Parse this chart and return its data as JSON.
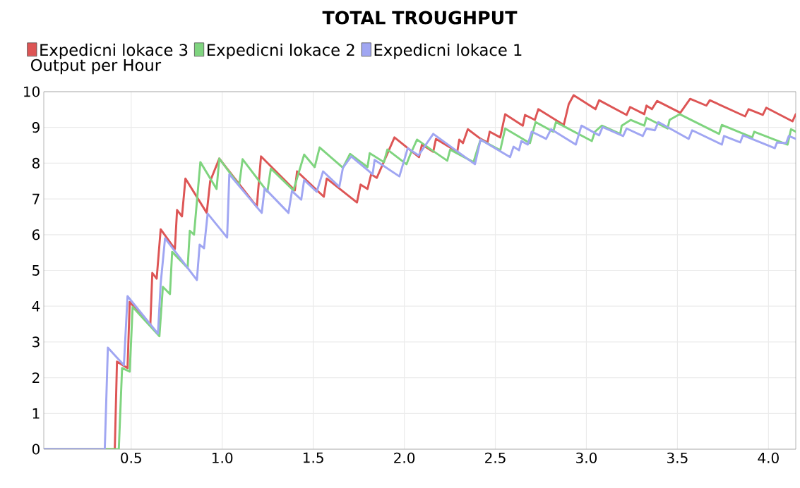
{
  "chart_data": {
    "type": "line",
    "title": "TOTAL TROUGHPUT",
    "ylabel": "Output per Hour",
    "xlim": [
      0.02,
      4.15
    ],
    "ylim": [
      0,
      10
    ],
    "xticks": [
      0.5,
      {
        "value": 1,
        "label": "1.0"
      },
      1.5,
      {
        "value": 2,
        "label": "2.0"
      },
      2.5,
      {
        "value": 3,
        "label": "3.0"
      },
      3.5,
      {
        "value": 4,
        "label": "4.0"
      }
    ],
    "yticks": [
      0,
      1,
      2,
      3,
      4,
      5,
      6,
      7,
      8,
      9,
      10
    ],
    "grid": true,
    "legend": "top left",
    "marker": "none",
    "line_style": "solid",
    "series": [
      {
        "name": "Expedicni lokace 3",
        "color": "#dd5555",
        "x": [
          0.02,
          0.41,
          0.422,
          0.48,
          0.492,
          0.605,
          0.616,
          0.64,
          0.662,
          0.74,
          0.752,
          0.779,
          0.798,
          0.915,
          0.934,
          0.984,
          1.19,
          1.213,
          1.399,
          1.411,
          1.558,
          1.574,
          1.74,
          1.76,
          1.798,
          1.818,
          1.849,
          1.946,
          2.081,
          2.097,
          2.159,
          2.174,
          2.291,
          2.302,
          2.322,
          2.349,
          2.419,
          2.457,
          2.469,
          2.527,
          2.554,
          2.651,
          2.663,
          2.717,
          2.736,
          2.876,
          2.903,
          2.93,
          3.05,
          3.07,
          3.221,
          3.24,
          3.318,
          3.33,
          3.36,
          3.388,
          3.516,
          3.57,
          3.659,
          3.678,
          3.872,
          3.891,
          3.969,
          3.988,
          4.132,
          4.15
        ],
        "values": [
          0,
          0,
          2.45,
          2.27,
          4.12,
          3.45,
          4.93,
          4.77,
          6.15,
          5.6,
          6.69,
          6.51,
          7.57,
          6.61,
          7.5,
          8.13,
          6.78,
          8.19,
          7.24,
          7.77,
          7.06,
          7.57,
          6.9,
          7.4,
          7.28,
          7.69,
          7.59,
          8.72,
          8.17,
          8.52,
          8.32,
          8.68,
          8.32,
          8.66,
          8.56,
          8.95,
          8.68,
          8.58,
          8.88,
          8.72,
          9.37,
          9.05,
          9.35,
          9.21,
          9.51,
          9.07,
          9.65,
          9.9,
          9.51,
          9.76,
          9.35,
          9.57,
          9.37,
          9.61,
          9.51,
          9.74,
          9.41,
          9.8,
          9.61,
          9.76,
          9.31,
          9.51,
          9.35,
          9.55,
          9.17,
          9.37
        ]
      },
      {
        "name": "Expedicni lokace 2",
        "color": "#7fd47f",
        "x": [
          0.02,
          0.432,
          0.45,
          0.492,
          0.508,
          0.655,
          0.674,
          0.713,
          0.725,
          0.81,
          0.822,
          0.845,
          0.88,
          0.969,
          0.984,
          1.093,
          1.112,
          1.248,
          1.267,
          1.391,
          1.45,
          1.508,
          1.535,
          1.663,
          1.702,
          1.798,
          1.81,
          1.888,
          1.907,
          2.012,
          2.031,
          2.07,
          2.147,
          2.236,
          2.252,
          2.38,
          2.4,
          2.419,
          2.527,
          2.554,
          2.69,
          2.721,
          2.818,
          2.833,
          3.03,
          3.047,
          3.085,
          3.186,
          3.194,
          3.244,
          3.318,
          3.33,
          3.446,
          3.457,
          3.512,
          3.729,
          3.744,
          3.911,
          3.922,
          4.105,
          4.124,
          4.15
        ],
        "values": [
          0,
          0,
          2.27,
          2.17,
          3.98,
          3.16,
          4.54,
          4.34,
          5.52,
          5.07,
          6.11,
          6.0,
          8.03,
          7.28,
          8.13,
          7.38,
          8.11,
          7.2,
          7.85,
          7.24,
          8.24,
          7.89,
          8.44,
          7.87,
          8.26,
          7.89,
          8.28,
          8.03,
          8.38,
          7.97,
          8.22,
          8.66,
          8.38,
          8.07,
          8.38,
          8.03,
          8.36,
          8.66,
          8.36,
          8.97,
          8.56,
          9.15,
          8.88,
          9.15,
          8.62,
          8.88,
          9.05,
          8.82,
          9.05,
          9.21,
          9.05,
          9.27,
          8.97,
          9.21,
          9.37,
          8.82,
          9.07,
          8.72,
          8.88,
          8.52,
          8.95,
          8.88
        ]
      },
      {
        "name": "Expedicni lokace 1",
        "color": "#a0a6f2",
        "x": [
          0.02,
          0.355,
          0.372,
          0.46,
          0.48,
          0.647,
          0.662,
          0.686,
          0.861,
          0.876,
          0.9,
          0.92,
          1.027,
          1.039,
          1.217,
          1.233,
          1.364,
          1.383,
          1.434,
          1.45,
          1.519,
          1.554,
          1.643,
          1.663,
          1.709,
          1.826,
          1.837,
          1.973,
          2.019,
          2.078,
          2.159,
          2.388,
          2.419,
          2.581,
          2.6,
          2.63,
          2.643,
          2.678,
          2.7,
          2.779,
          2.806,
          2.942,
          2.973,
          3.07,
          3.089,
          3.202,
          3.221,
          3.31,
          3.33,
          3.376,
          3.395,
          3.562,
          3.581,
          3.744,
          3.756,
          3.845,
          3.86,
          4.035,
          4.047,
          4.097,
          4.112,
          4.15
        ],
        "values": [
          0,
          0,
          2.84,
          2.35,
          4.28,
          3.23,
          4.63,
          5.9,
          4.73,
          5.72,
          5.62,
          6.59,
          5.92,
          7.69,
          6.61,
          7.3,
          6.61,
          7.22,
          6.98,
          7.53,
          7.2,
          7.77,
          7.34,
          7.87,
          8.19,
          7.69,
          8.09,
          7.63,
          8.42,
          8.22,
          8.82,
          7.97,
          8.66,
          8.17,
          8.46,
          8.36,
          8.62,
          8.52,
          8.88,
          8.68,
          8.95,
          8.52,
          9.05,
          8.78,
          9.01,
          8.76,
          8.97,
          8.76,
          8.97,
          8.92,
          9.15,
          8.68,
          8.92,
          8.52,
          8.76,
          8.58,
          8.78,
          8.42,
          8.58,
          8.56,
          8.76,
          8.68
        ]
      }
    ]
  }
}
